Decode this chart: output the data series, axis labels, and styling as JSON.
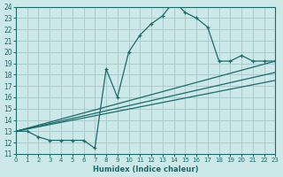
{
  "xlabel": "Humidex (Indice chaleur)",
  "bg_color": "#cde8e8",
  "grid_color": "#aacccc",
  "line_color": "#1a6b6b",
  "xmin": 0,
  "xmax": 23,
  "ymin": 11,
  "ymax": 24,
  "xticks": [
    0,
    1,
    2,
    3,
    4,
    5,
    6,
    7,
    8,
    9,
    10,
    11,
    12,
    13,
    14,
    15,
    16,
    17,
    18,
    19,
    20,
    21,
    22,
    23
  ],
  "yticks": [
    11,
    12,
    13,
    14,
    15,
    16,
    17,
    18,
    19,
    20,
    21,
    22,
    23,
    24
  ],
  "curve1_x": [
    0,
    1,
    2,
    3,
    4,
    5,
    6,
    7,
    8,
    9,
    10,
    11,
    12,
    13,
    14,
    15,
    16,
    17,
    18,
    19,
    20,
    21,
    22,
    23
  ],
  "curve1_y": [
    13.0,
    13.0,
    12.5,
    12.2,
    12.2,
    12.2,
    12.2,
    11.5,
    18.5,
    16.0,
    20.0,
    21.5,
    22.5,
    23.2,
    24.5,
    23.5,
    23.0,
    22.2,
    19.2,
    19.2,
    19.7,
    19.2,
    19.2,
    19.2
  ],
  "line2_x": [
    0,
    23
  ],
  "line2_y": [
    13.0,
    19.2
  ],
  "line3_x": [
    0,
    23
  ],
  "line3_y": [
    13.0,
    18.2
  ],
  "line4_x": [
    0,
    23
  ],
  "line4_y": [
    13.0,
    17.5
  ]
}
